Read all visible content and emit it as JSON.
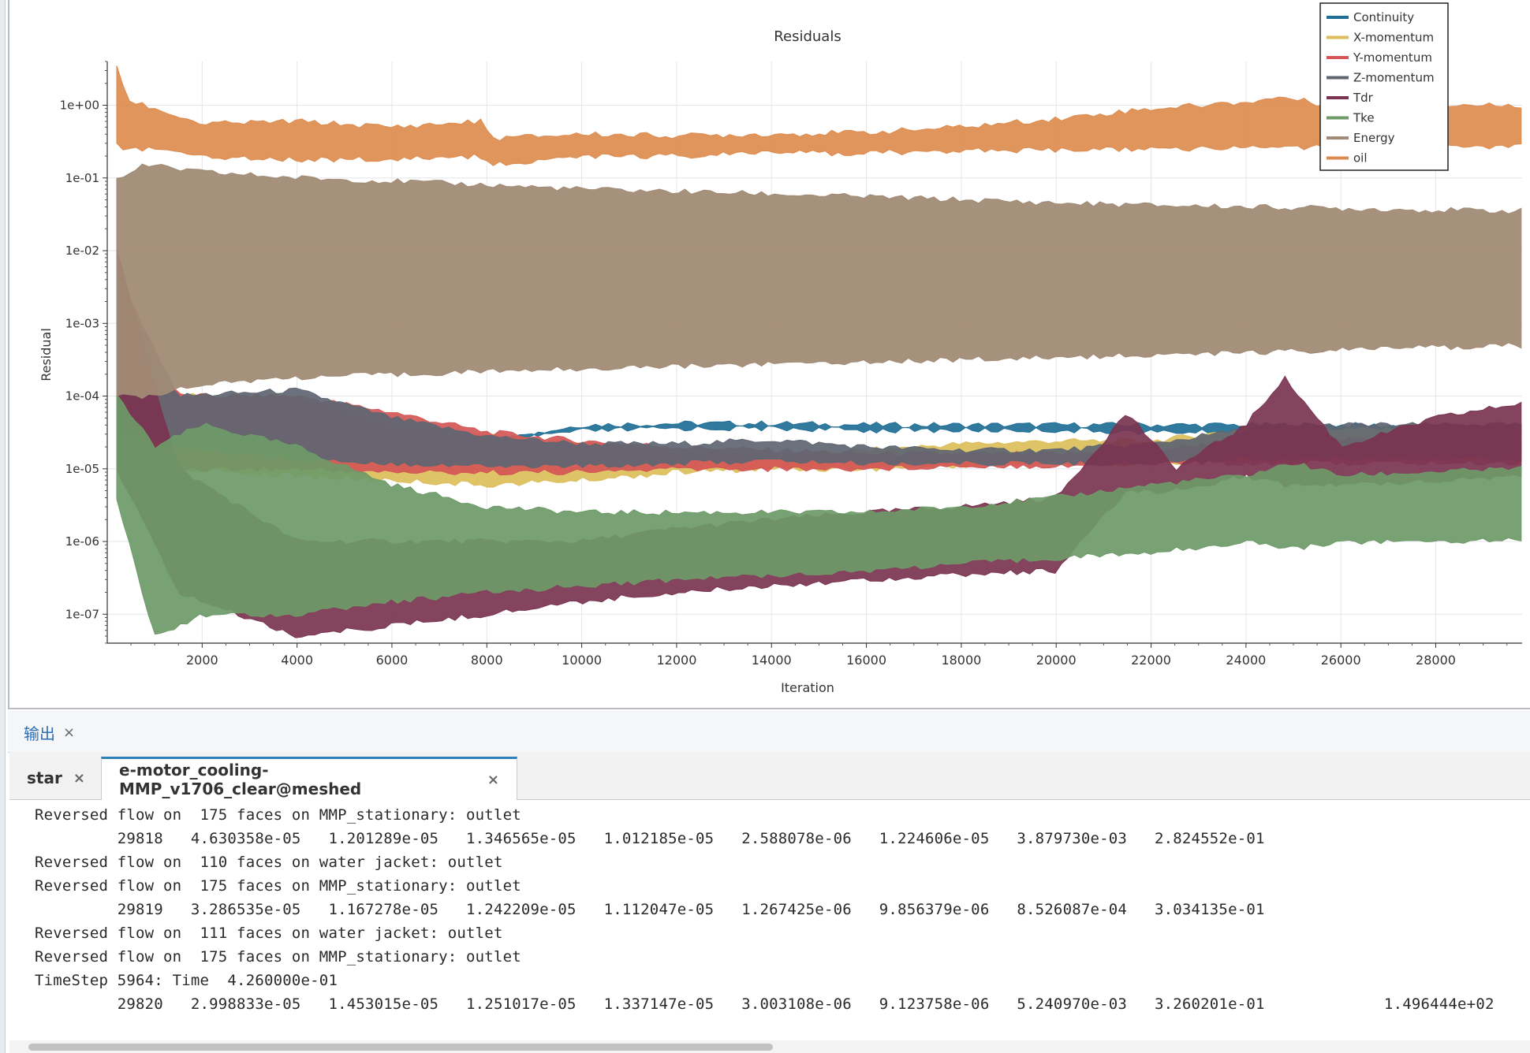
{
  "plot": {
    "title": "Residuals",
    "xlabel": "Iteration",
    "ylabel": "Residual"
  },
  "chart_data": {
    "type": "line",
    "title": "Residuals",
    "xlabel": "Iteration",
    "ylabel": "Residual",
    "yscale": "log",
    "xlim": [
      0,
      29820
    ],
    "ylim": [
      4e-08,
      4.0
    ],
    "x_ticks": [
      2000,
      4000,
      6000,
      8000,
      10000,
      12000,
      14000,
      16000,
      18000,
      20000,
      22000,
      24000,
      26000,
      28000
    ],
    "y_ticks": [
      1e-07,
      1e-06,
      1e-05,
      0.0001,
      0.001,
      0.01,
      0.1,
      1.0
    ],
    "y_tick_labels": [
      "1e-07",
      "1e-06",
      "1e-05",
      "1e-04",
      "1e-03",
      "1e-02",
      "1e-01",
      "1e+00"
    ],
    "grid": true,
    "legend_position": "top-right",
    "series": [
      {
        "name": "Continuity",
        "color": "#1f6f96",
        "x": [
          200,
          1500,
          4000,
          7000,
          8200,
          10000,
          12000,
          14000,
          16000,
          18000,
          20000,
          22000,
          24000,
          26000,
          28000,
          29800
        ],
        "upper": [
          0.001,
          8e-05,
          5e-05,
          3.5e-05,
          2.5e-05,
          4e-05,
          4.2e-05,
          4.2e-05,
          4e-05,
          4e-05,
          4e-05,
          4e-05,
          4e-05,
          4e-05,
          3.8e-05,
          3.8e-05
        ],
        "lower": [
          0.0001,
          3e-05,
          2e-05,
          2.6e-05,
          2.5e-05,
          3.3e-05,
          3.6e-05,
          3.6e-05,
          3.4e-05,
          3.4e-05,
          3.4e-05,
          3.2e-05,
          3.2e-05,
          3e-05,
          3e-05,
          3e-05
        ]
      },
      {
        "name": "X-momentum",
        "color": "#dcbe5a",
        "x": [
          200,
          1500,
          4000,
          6000,
          8000,
          10000,
          12000,
          14000,
          16000,
          18000,
          20000,
          22000,
          24000,
          26000,
          28000,
          29800
        ],
        "upper": [
          0.003,
          0.0001,
          0.0001,
          4e-05,
          2.8e-05,
          2.2e-05,
          1.8e-05,
          1.5e-05,
          1.8e-05,
          2.2e-05,
          2.4e-05,
          2.4e-05,
          3.5e-05,
          3.5e-05,
          3.5e-05,
          3.5e-05
        ],
        "lower": [
          3e-05,
          1e-05,
          8e-06,
          7e-06,
          6e-06,
          7e-06,
          9e-06,
          1e-05,
          1e-05,
          1.1e-05,
          1.2e-05,
          1.2e-05,
          1.4e-05,
          1.4e-05,
          1.4e-05,
          1.4e-05
        ]
      },
      {
        "name": "Y-momentum",
        "color": "#d45656",
        "x": [
          200,
          1500,
          4000,
          6000,
          8000,
          10000,
          12000,
          14000,
          16000,
          18000,
          20000,
          22000,
          24000,
          26000,
          28000,
          29800
        ],
        "upper": [
          0.005,
          0.0001,
          0.0001,
          6e-05,
          3.2e-05,
          2.4e-05,
          2e-05,
          1.8e-05,
          1.6e-05,
          1.6e-05,
          1.6e-05,
          1.8e-05,
          2.5e-05,
          2.5e-05,
          2.5e-05,
          2.5e-05
        ],
        "lower": [
          3e-05,
          1e-05,
          1e-05,
          9e-06,
          9e-06,
          9e-06,
          1e-05,
          1e-05,
          1e-05,
          1.1e-05,
          1.1e-05,
          1.2e-05,
          1.2e-05,
          1.2e-05,
          1.2e-05,
          1.2e-05
        ]
      },
      {
        "name": "Z-momentum",
        "color": "#5e6672",
        "x": [
          200,
          1500,
          4000,
          6000,
          8000,
          10000,
          12000,
          14000,
          16000,
          18000,
          20000,
          22000,
          24000,
          26000,
          28000,
          29800
        ],
        "upper": [
          0.004,
          0.0001,
          0.00012,
          5e-05,
          2.8e-05,
          2.2e-05,
          2.2e-05,
          2.5e-05,
          2e-05,
          1.8e-05,
          1.8e-05,
          2.2e-05,
          3.5e-05,
          4e-05,
          4e-05,
          4e-05
        ],
        "lower": [
          3e-05,
          2e-05,
          1.4e-05,
          1.2e-05,
          1.1e-05,
          1.1e-05,
          1.2e-05,
          1.3e-05,
          1.2e-05,
          1.2e-05,
          1.2e-05,
          1.2e-05,
          1.4e-05,
          1.4e-05,
          1.4e-05,
          1.4e-05
        ]
      },
      {
        "name": "Tdr",
        "color": "#7a3450",
        "x": [
          200,
          1500,
          4000,
          6000,
          8000,
          10000,
          12000,
          14000,
          16000,
          18000,
          20000,
          21500,
          22500,
          24000,
          24800,
          26000,
          28000,
          29800
        ],
        "upper": [
          0.01,
          1e-05,
          1e-06,
          1e-06,
          1e-06,
          1e-06,
          1.5e-06,
          2e-06,
          2.5e-06,
          3e-06,
          4e-06,
          6e-05,
          1e-05,
          4e-05,
          0.00018,
          2e-05,
          5e-05,
          8e-05
        ],
        "lower": [
          1e-05,
          2e-07,
          5e-08,
          7e-08,
          1e-07,
          1.5e-07,
          2e-07,
          2.5e-07,
          3e-07,
          3.5e-07,
          4e-07,
          5e-06,
          5e-06,
          8e-06,
          6e-06,
          6e-06,
          7e-06,
          8e-06
        ]
      },
      {
        "name": "Tke",
        "color": "#6e9a68",
        "x": [
          200,
          1000,
          2000,
          4000,
          6000,
          8000,
          10000,
          12000,
          14000,
          16000,
          18000,
          20000,
          22000,
          24000,
          25000,
          26000,
          28000,
          29800
        ],
        "upper": [
          0.0001,
          2e-05,
          4e-05,
          2e-05,
          6e-06,
          3e-06,
          2.5e-06,
          2.5e-06,
          2.5e-06,
          2.5e-06,
          3e-06,
          4e-06,
          6e-06,
          8e-06,
          1.2e-05,
          8e-06,
          9e-06,
          1e-05
        ],
        "lower": [
          4e-06,
          5e-08,
          1e-07,
          1e-07,
          1.5e-07,
          2e-07,
          2.5e-07,
          3e-07,
          3.5e-07,
          4e-07,
          5e-07,
          6e-07,
          7e-07,
          1e-06,
          8e-07,
          1e-06,
          1e-06,
          1.1e-06
        ]
      },
      {
        "name": "Energy",
        "color": "#a18b76",
        "x": [
          200,
          800,
          2000,
          4000,
          6000,
          8000,
          10000,
          12000,
          14000,
          16000,
          18000,
          20000,
          22000,
          24000,
          26000,
          28000,
          29800
        ],
        "upper": [
          0.1,
          0.15,
          0.12,
          0.1,
          0.09,
          0.08,
          0.07,
          0.065,
          0.06,
          0.055,
          0.05,
          0.045,
          0.042,
          0.04,
          0.038,
          0.036,
          0.035
        ],
        "lower": [
          0.0001,
          0.0001,
          0.00015,
          0.00018,
          0.0002,
          0.00022,
          0.00024,
          0.00026,
          0.00028,
          0.0003,
          0.00032,
          0.00034,
          0.00037,
          0.0004,
          0.00043,
          0.00047,
          0.0005
        ]
      },
      {
        "name": "oil",
        "color": "#dd8c4f",
        "x": [
          200,
          400,
          1000,
          2000,
          4000,
          6000,
          7900,
          8100,
          10000,
          12000,
          14000,
          16000,
          18000,
          20000,
          22000,
          24000,
          24800,
          26000,
          28000,
          29800
        ],
        "upper": [
          3.5,
          1.2,
          0.9,
          0.55,
          0.6,
          0.5,
          0.6,
          0.35,
          0.4,
          0.38,
          0.4,
          0.42,
          0.5,
          0.65,
          0.9,
          1.1,
          1.3,
          0.9,
          1.0,
          1.0
        ],
        "lower": [
          0.3,
          0.25,
          0.25,
          0.2,
          0.18,
          0.18,
          0.2,
          0.15,
          0.2,
          0.2,
          0.22,
          0.22,
          0.24,
          0.24,
          0.25,
          0.26,
          0.27,
          0.26,
          0.27,
          0.27
        ]
      }
    ]
  },
  "output_panel": {
    "tab_label": "输出",
    "close_glyph": "×"
  },
  "console_tabs": [
    {
      "label": "star",
      "close_glyph": "×"
    },
    {
      "label": "e-motor_cooling-MMP_v1706_clear@meshed",
      "close_glyph": "×"
    }
  ],
  "console": {
    "lines": [
      "Reversed flow on  175 faces on MMP_stationary: outlet",
      "         29818   4.630358e-05   1.201289e-05   1.346565e-05   1.012185e-05   2.588078e-06   1.224606e-05   3.879730e-03   2.824552e-01",
      "Reversed flow on  110 faces on water jacket: outlet",
      "Reversed flow on  175 faces on MMP_stationary: outlet",
      "         29819   3.286535e-05   1.167278e-05   1.242209e-05   1.112047e-05   1.267425e-06   9.856379e-06   8.526087e-04   3.034135e-01",
      "Reversed flow on  111 faces on water jacket: outlet",
      "Reversed flow on  175 faces on MMP_stationary: outlet",
      "TimeStep 5964: Time  4.260000e-01",
      "         29820   2.998833e-05   1.453015e-05   1.251017e-05   1.337147e-05   3.003108e-06   9.123758e-06   5.240970e-03   3.260201e-01             1.496444e+02"
    ]
  }
}
